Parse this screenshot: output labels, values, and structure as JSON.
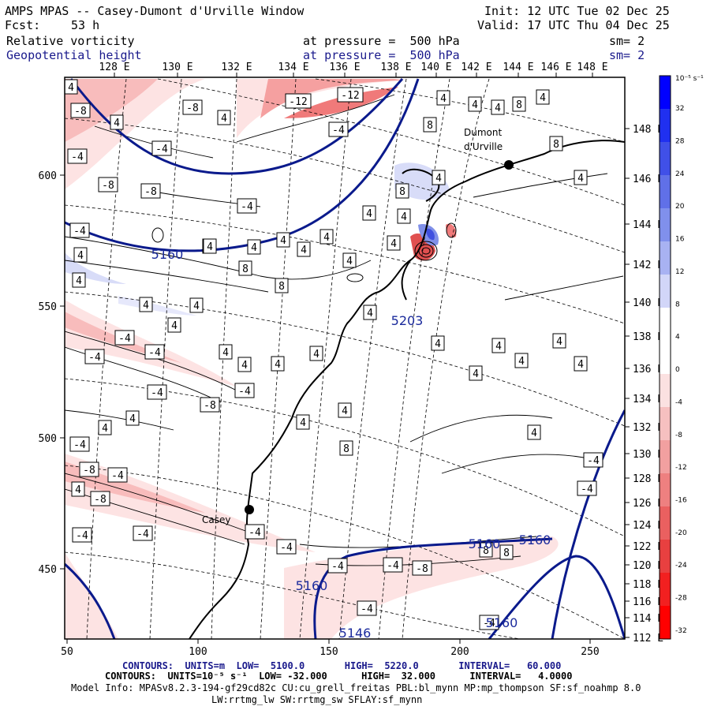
{
  "header": {
    "title": "AMPS MPAS -- Casey-Dumont d'Urville Window",
    "init": "Init: 12 UTC Tue 02 Dec 25",
    "fcst_label": "Fcst:",
    "fcst_value": "53 h",
    "valid": "Valid: 17 UTC Thu 04 Dec 25",
    "field1": "Relative vorticity",
    "field1_level": "at pressure =  500 hPa",
    "field1_sm": "sm= 2",
    "field2": "Geopotential height",
    "field2_level": "at pressure =  500 hPa",
    "field2_sm": "sm= 2"
  },
  "top_axis": [
    "128 E",
    "130 E",
    "132 E",
    "134 E",
    "136 E",
    "138 E",
    "140 E",
    "142 E",
    "144 E",
    "146 E",
    "148 E"
  ],
  "right_axis": [
    "148 E",
    "146 E",
    "144 E",
    "142 E",
    "140 E",
    "138 E",
    "136 E",
    "134 E",
    "132 E",
    "130 E",
    "128 E",
    "126 E",
    "124 E",
    "122 E",
    "120 E",
    "118 E",
    "116 E",
    "114 E",
    "112 E"
  ],
  "left_axis": [
    "600",
    "550",
    "500",
    "450"
  ],
  "bottom_axis": [
    "50",
    "100",
    "150",
    "200",
    "250"
  ],
  "colorbar": {
    "unit": "10⁻⁵ s⁻¹",
    "labels": [
      "32",
      "28",
      "24",
      "20",
      "16",
      "12",
      "8",
      "4",
      "0",
      "-4",
      "-8",
      "-12",
      "-16",
      "-20",
      "-24",
      "-28",
      "-32"
    ]
  },
  "places": {
    "dumont": "Dumont\nd'Urville",
    "casey": "Casey"
  },
  "height_labels": [
    "5160",
    "5203",
    "5160",
    "5160",
    "5160",
    "5146",
    "5160"
  ],
  "vort_labels": [
    "-8",
    "-8",
    "-4",
    "-8",
    "-12",
    "-12",
    "-4",
    "-4",
    "-8",
    "-4",
    "-4",
    "-4",
    "-4",
    "-4",
    "-8",
    "-8",
    "-4",
    "-4",
    "-4",
    "-4",
    "-4",
    "-8",
    "-4",
    "-4",
    "-4",
    "-4",
    "-4",
    "-8",
    "-4",
    "-4",
    "-4",
    "-4",
    "4",
    "4",
    "4",
    "4",
    "8",
    "8",
    "4",
    "8",
    "4",
    "4",
    "4",
    "8",
    "4",
    "4",
    "4",
    "4",
    "4",
    "4",
    "4",
    "4",
    "4",
    "8",
    "8",
    "4",
    "4",
    "4",
    "4",
    "4",
    "4",
    "4",
    "4",
    "4",
    "4",
    "4",
    "4",
    "4",
    "4",
    "4",
    "4",
    "8",
    "4",
    "4",
    "4",
    "4",
    "4",
    "4",
    "8",
    "8",
    "4",
    "4",
    "4"
  ],
  "footer": {
    "line1_contours": "CONTOURS:  UNITS=m  LOW=  5100.0       HIGH=  5220.0       INTERVAL=   60.000",
    "line2_contours": "CONTOURS:  UNITS=10⁻⁵ s⁻¹  LOW= -32.000      HIGH=  32.000      INTERVAL=   4.0000",
    "model_info": "Model Info: MPASv8.2.3-194-gf29cd82c CU:cu_grell_freitas PBL:bl_mynn MP:mp_thompson SF:sf_noahmp 8.0",
    "model_info2": "LW:rrtmg_lw SW:rrtmg_sw SFLAY:sf_mynn"
  },
  "colors": {
    "frame": "#000000",
    "height_contour": "#0a1a8c",
    "pos_max": "#0000ff",
    "neg_max": "#ff0000",
    "footer_blue": "#1a1a8c"
  }
}
